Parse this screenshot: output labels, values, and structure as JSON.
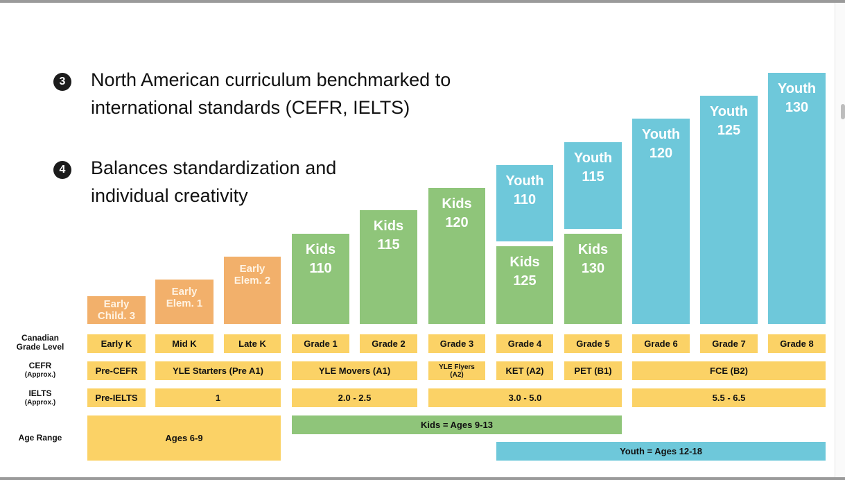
{
  "bullets": [
    {
      "number": "3",
      "text": "North American curriculum benchmarked to international standards (CEFR, IELTS)"
    },
    {
      "number": "4",
      "text": "Balances standardization and individual creativity"
    }
  ],
  "colors": {
    "early": "#f2b06b",
    "kids": "#8fc57a",
    "youth": "#6ec8da",
    "row_cells": "#fbd266"
  },
  "levels": [
    {
      "name": "Early Child. 3"
    },
    {
      "name": "Early Elem. 1"
    },
    {
      "name": "Early Elem. 2"
    },
    {
      "name": "Kids 110"
    },
    {
      "name": "Kids 115"
    },
    {
      "name": "Kids 120"
    },
    {
      "name": "Youth 110"
    },
    {
      "name": "Kids 125"
    },
    {
      "name": "Youth 115"
    },
    {
      "name": "Kids 130"
    },
    {
      "name": "Youth 120"
    },
    {
      "name": "Youth 125"
    },
    {
      "name": "Youth 130"
    }
  ],
  "row_labels": {
    "grade": {
      "line1": "Canadian",
      "line2": "Grade Level"
    },
    "cefr": {
      "line1": "CEFR",
      "line2": "(Approx.)"
    },
    "ielts": {
      "line1": "IELTS",
      "line2": "(Approx.)"
    },
    "age": {
      "line1": "Age Range"
    }
  },
  "grades": [
    "Early K",
    "Mid K",
    "Late K",
    "Grade 1",
    "Grade 2",
    "Grade 3",
    "Grade 4",
    "Grade 5",
    "Grade 6",
    "Grade 7",
    "Grade 8"
  ],
  "cefr": [
    "Pre-CEFR",
    "YLE Starters (Pre A1)",
    "YLE Movers (A1)",
    "YLE Flyers (A2)",
    "KET (A2)",
    "PET (B1)",
    "FCE (B2)"
  ],
  "ielts": [
    "Pre-IELTS",
    "1",
    "2.0 - 2.5",
    "3.0 - 5.0",
    "5.5 - 6.5"
  ],
  "age_ranges": {
    "early": "Ages 6-9",
    "kids": "Kids = Ages 9-13",
    "youth": "Youth = Ages 12-18"
  }
}
